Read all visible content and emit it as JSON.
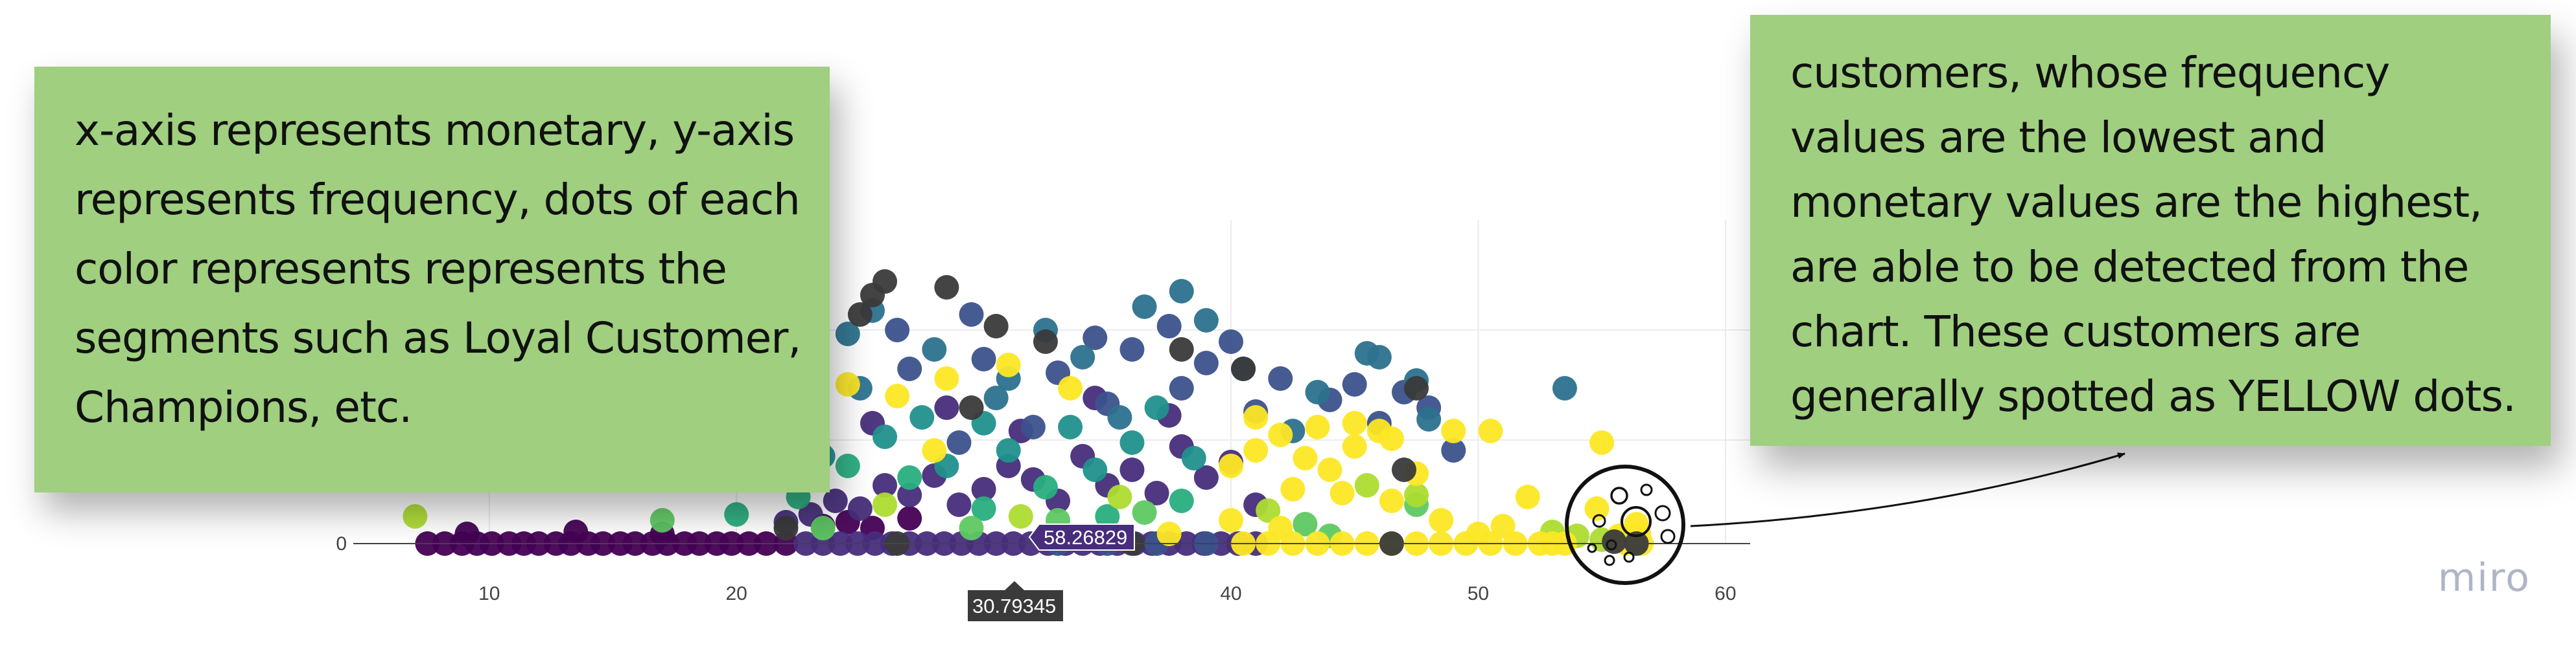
{
  "board": {
    "watermark": "miro"
  },
  "notes": {
    "left": "x-axis represents monetary, y-axis represents frequency, dots of each color represents represents the segments such as Loyal Customer, Champions, etc.",
    "right": "customers, whose frequency values are the lowest and monetary values are the highest, are able to be detected from the chart. These customers are generally spotted as YELLOW dots."
  },
  "colors": {
    "note_background": "#9fcf7f",
    "segment_palette": [
      "#440154",
      "#472d7b",
      "#3b528b",
      "#2c728e",
      "#21918c",
      "#28ae80",
      "#5ec962",
      "#addc30",
      "#fde725",
      "#3a3a3a"
    ]
  },
  "hover": {
    "y_value": "58.26829",
    "x_value": "30.79345"
  },
  "chart_data": {
    "type": "scatter",
    "xlabel": "",
    "ylabel": "",
    "xlim": [
      4.5,
      61
    ],
    "x_ticks": [
      "10",
      "20",
      "40",
      "50",
      "60"
    ],
    "y_ticks": [
      "0"
    ],
    "grid": true,
    "legend": "none",
    "series": [
      {
        "color": "#440154",
        "points": [
          [
            7.5,
            0
          ],
          [
            8.2,
            0
          ],
          [
            8.9,
            0
          ],
          [
            9.5,
            0
          ],
          [
            10.1,
            0
          ],
          [
            10.8,
            0
          ],
          [
            11.4,
            0
          ],
          [
            12.0,
            0
          ],
          [
            12.7,
            0
          ],
          [
            13.3,
            0
          ],
          [
            14.0,
            0
          ],
          [
            14.6,
            0
          ],
          [
            15.3,
            0
          ],
          [
            15.9,
            0
          ],
          [
            16.6,
            0
          ],
          [
            17.2,
            0
          ],
          [
            17.9,
            0
          ],
          [
            18.5,
            0
          ],
          [
            19.2,
            0
          ],
          [
            19.8,
            0
          ],
          [
            20.5,
            0
          ],
          [
            21.2,
            0
          ],
          [
            22.0,
            0
          ],
          [
            9.1,
            5
          ],
          [
            13.5,
            6
          ],
          [
            17.0,
            5
          ],
          [
            23.5,
            9
          ],
          [
            24.5,
            11
          ],
          [
            25.5,
            8
          ],
          [
            27.0,
            13
          ]
        ]
      },
      {
        "color": "#472d7b",
        "points": [
          [
            22.8,
            0
          ],
          [
            23.5,
            0
          ],
          [
            24.2,
            0
          ],
          [
            24.9,
            0
          ],
          [
            25.6,
            0
          ],
          [
            26.3,
            0
          ],
          [
            27.0,
            0
          ],
          [
            27.7,
            0
          ],
          [
            28.4,
            0
          ],
          [
            29.1,
            0
          ],
          [
            29.8,
            0
          ],
          [
            30.5,
            0
          ],
          [
            31.2,
            0
          ],
          [
            31.9,
            0
          ],
          [
            32.6,
            0
          ],
          [
            33.3,
            0
          ],
          [
            34.0,
            0
          ],
          [
            34.7,
            0
          ],
          [
            35.4,
            0
          ],
          [
            36.1,
            0
          ],
          [
            36.8,
            0
          ],
          [
            37.5,
            0
          ],
          [
            38.2,
            0
          ],
          [
            38.9,
            0
          ],
          [
            39.6,
            0
          ],
          [
            40.3,
            0
          ],
          [
            41.0,
            0
          ],
          [
            22.0,
            11
          ],
          [
            23.0,
            15
          ],
          [
            24.0,
            22
          ],
          [
            25.0,
            18
          ],
          [
            26.0,
            30
          ],
          [
            27.0,
            25
          ],
          [
            28.0,
            35
          ],
          [
            29.0,
            20
          ],
          [
            30.0,
            28
          ],
          [
            31.0,
            40
          ],
          [
            32.0,
            33
          ],
          [
            33.0,
            22
          ],
          [
            34.0,
            45
          ],
          [
            35.0,
            30
          ],
          [
            36.0,
            38
          ],
          [
            37.0,
            26
          ],
          [
            38.0,
            50
          ],
          [
            39.0,
            34
          ],
          [
            40.0,
            42
          ],
          [
            41.0,
            20
          ],
          [
            25.5,
            62
          ],
          [
            28.5,
            70
          ],
          [
            31.5,
            58
          ],
          [
            34.5,
            75
          ],
          [
            37.5,
            66
          ]
        ]
      },
      {
        "color": "#3b528b",
        "points": [
          [
            33.0,
            0
          ],
          [
            35.0,
            0
          ],
          [
            37.0,
            0
          ],
          [
            39.0,
            0
          ],
          [
            29.0,
            52
          ],
          [
            32.0,
            60
          ],
          [
            35.0,
            72
          ],
          [
            38.0,
            80
          ],
          [
            41.0,
            68
          ],
          [
            44.0,
            74
          ],
          [
            46.0,
            62
          ],
          [
            27.0,
            90
          ],
          [
            30.0,
            95
          ],
          [
            33.0,
            88
          ],
          [
            36.0,
            100
          ],
          [
            39.0,
            93
          ],
          [
            42.0,
            85
          ],
          [
            45.0,
            82
          ],
          [
            47.0,
            78
          ],
          [
            26.5,
            110
          ],
          [
            29.5,
            118
          ],
          [
            34.5,
            106
          ],
          [
            37.5,
            112
          ],
          [
            40.0,
            104
          ],
          [
            48.0,
            70
          ],
          [
            49.0,
            48
          ]
        ]
      },
      {
        "color": "#2c728e",
        "points": [
          [
            24.5,
            108
          ],
          [
            28.0,
            100
          ],
          [
            31.0,
            85
          ],
          [
            34.0,
            96
          ],
          [
            36.5,
            122
          ],
          [
            38.0,
            130
          ],
          [
            40.5,
            90
          ],
          [
            43.5,
            78
          ],
          [
            46.0,
            96
          ],
          [
            47.5,
            84
          ],
          [
            48.0,
            64
          ],
          [
            53.5,
            80
          ],
          [
            25.0,
            80
          ],
          [
            30.5,
            75
          ],
          [
            35.5,
            65
          ],
          [
            42.5,
            58
          ],
          [
            25.5,
            120
          ],
          [
            32.5,
            110
          ],
          [
            39.0,
            115
          ],
          [
            45.5,
            98
          ]
        ]
      },
      {
        "color": "#21918c",
        "points": [
          [
            23.5,
            45
          ],
          [
            26.0,
            55
          ],
          [
            28.5,
            40
          ],
          [
            31.0,
            48
          ],
          [
            33.5,
            60
          ],
          [
            36.0,
            52
          ],
          [
            38.5,
            44
          ],
          [
            21.0,
            35
          ],
          [
            27.5,
            65
          ],
          [
            30.0,
            62
          ],
          [
            34.5,
            38
          ],
          [
            37.0,
            70
          ]
        ]
      },
      {
        "color": "#28ae80",
        "points": [
          [
            20.0,
            15
          ],
          [
            22.5,
            24
          ],
          [
            24.5,
            40
          ],
          [
            27.0,
            34
          ],
          [
            30.0,
            18
          ],
          [
            32.5,
            29
          ],
          [
            35.0,
            14
          ],
          [
            38.0,
            22
          ]
        ]
      },
      {
        "color": "#5ec962",
        "points": [
          [
            17.0,
            12
          ],
          [
            23.5,
            8
          ],
          [
            29.5,
            8
          ],
          [
            33.0,
            12
          ],
          [
            36.5,
            16
          ],
          [
            43.0,
            10
          ],
          [
            47.5,
            20
          ],
          [
            44.0,
            4
          ]
        ]
      },
      {
        "color": "#addc30",
        "points": [
          [
            7.0,
            14
          ],
          [
            26.0,
            20
          ],
          [
            31.5,
            14
          ],
          [
            35.5,
            24
          ],
          [
            41.5,
            17
          ],
          [
            45.5,
            30
          ],
          [
            47.5,
            25
          ],
          [
            53.0,
            6
          ],
          [
            54.0,
            4
          ],
          [
            55.0,
            2
          ]
        ]
      },
      {
        "color": "#fde725",
        "points": [
          [
            40.5,
            0
          ],
          [
            41.5,
            0
          ],
          [
            42.5,
            0
          ],
          [
            43.5,
            0
          ],
          [
            44.5,
            0
          ],
          [
            45.5,
            0
          ],
          [
            46.5,
            0
          ],
          [
            47.5,
            0
          ],
          [
            48.5,
            0
          ],
          [
            49.5,
            0
          ],
          [
            50.5,
            0
          ],
          [
            51.5,
            0
          ],
          [
            52.5,
            0
          ],
          [
            53.5,
            0
          ],
          [
            56.0,
            0
          ],
          [
            56.6,
            0
          ],
          [
            24.5,
            82
          ],
          [
            26.5,
            76
          ],
          [
            28.5,
            85
          ],
          [
            31.0,
            92
          ],
          [
            33.5,
            80
          ],
          [
            40.0,
            40
          ],
          [
            41.0,
            48
          ],
          [
            42.0,
            56
          ],
          [
            43.0,
            44
          ],
          [
            44.0,
            38
          ],
          [
            45.0,
            50
          ],
          [
            46.0,
            58
          ],
          [
            42.5,
            28
          ],
          [
            44.5,
            26
          ],
          [
            46.5,
            22
          ],
          [
            48.5,
            12
          ],
          [
            40.0,
            12
          ],
          [
            42.0,
            8
          ],
          [
            47.5,
            36
          ],
          [
            49.0,
            58
          ],
          [
            50.5,
            58
          ],
          [
            52.0,
            24
          ],
          [
            55.0,
            52
          ],
          [
            55.7,
            4
          ],
          [
            56.4,
            10
          ],
          [
            54.8,
            18
          ],
          [
            43.5,
            60
          ],
          [
            45.0,
            62
          ],
          [
            46.5,
            54
          ],
          [
            41.0,
            65
          ],
          [
            28.0,
            48
          ],
          [
            37.5,
            5
          ],
          [
            50.0,
            5
          ],
          [
            51.0,
            9
          ],
          [
            53.0,
            0
          ],
          [
            56.5,
            5
          ]
        ]
      },
      {
        "color": "#3a3a3a",
        "points": [
          [
            26.0,
            135
          ],
          [
            25.5,
            128
          ],
          [
            28.5,
            132
          ],
          [
            25.0,
            118
          ],
          [
            30.5,
            112
          ],
          [
            32.5,
            104
          ],
          [
            38.0,
            100
          ],
          [
            40.5,
            90
          ],
          [
            47.5,
            80
          ],
          [
            47.0,
            38
          ],
          [
            29.5,
            70
          ],
          [
            26.5,
            0
          ],
          [
            36.0,
            0
          ],
          [
            46.5,
            0
          ],
          [
            22.0,
            8
          ],
          [
            56.4,
            0
          ],
          [
            55.5,
            1
          ]
        ]
      }
    ]
  }
}
